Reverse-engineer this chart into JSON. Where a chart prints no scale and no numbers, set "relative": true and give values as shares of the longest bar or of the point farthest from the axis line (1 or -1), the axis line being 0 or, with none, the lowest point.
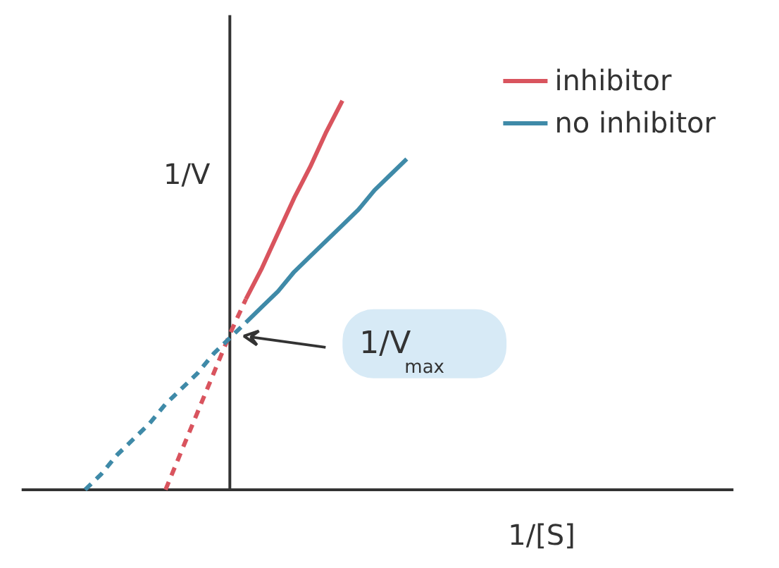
{
  "chart_data": {
    "type": "line",
    "relative": true,
    "xlabel": "1/[S]",
    "ylabel": "1/V",
    "grid": false,
    "legend": "top right",
    "categories": [
      null,
      null,
      null,
      null,
      null,
      null,
      null,
      null,
      null,
      null,
      null,
      null,
      null,
      null,
      null,
      null,
      null,
      null,
      null,
      null,
      null
    ],
    "series": [
      {
        "color": "#d9545e",
        "values": [
          null,
          null,
          null,
          null,
          null,
          0,
          0.1,
          0.2,
          0.3,
          0.4,
          0.49,
          null,
          null,
          null,
          null,
          null,
          null,
          null,
          null,
          null,
          null
        ],
        "line_style": "dashed"
      },
      {
        "name": "inhibitor",
        "color": "#d9545e",
        "values": [
          null,
          null,
          null,
          null,
          null,
          null,
          null,
          null,
          null,
          null,
          0.49,
          0.57,
          0.66,
          0.75,
          0.83,
          0.92,
          1,
          null,
          null,
          null,
          null
        ],
        "line_style": "solid"
      },
      {
        "color": "#3f8aa8",
        "values": [
          0,
          0.04,
          0.09,
          0.13,
          0.17,
          0.22,
          0.26,
          0.3,
          0.35,
          0.39,
          0.43,
          null,
          null,
          null,
          null,
          null,
          null,
          null,
          null,
          null,
          null
        ],
        "line_style": "dashed"
      },
      {
        "name": "no inhibitor",
        "color": "#3f8aa8",
        "values": [
          null,
          null,
          null,
          null,
          null,
          null,
          null,
          null,
          null,
          null,
          0.43,
          0.47,
          0.51,
          0.56,
          0.6,
          0.64,
          0.68,
          0.72,
          0.77,
          0.81,
          0.85
        ],
        "line_style": "solid"
      }
    ],
    "annotations": [
      "1/V$_{max}$"
    ]
  }
}
